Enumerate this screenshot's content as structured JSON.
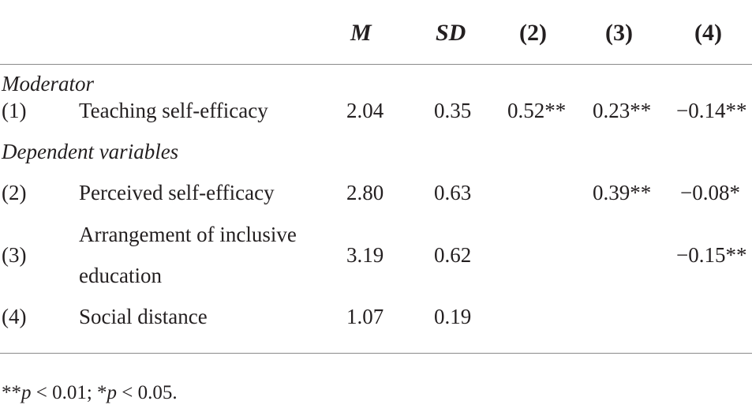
{
  "table": {
    "headers": {
      "m": "M",
      "sd": "SD",
      "c2": "(2)",
      "c3": "(3)",
      "c4": "(4)"
    },
    "sections": {
      "moderator": "Moderator",
      "dependent": "Dependent variables"
    },
    "rows": [
      {
        "num": "(1)",
        "label": "Teaching self-efficacy",
        "m": "2.04",
        "sd": "0.35",
        "c2": "0.52**",
        "c3": "0.23**",
        "c4": "−0.14**"
      },
      {
        "num": "(2)",
        "label": "Perceived self-efficacy",
        "m": "2.80",
        "sd": "0.63",
        "c2": "",
        "c3": "0.39**",
        "c4": "−0.08*"
      },
      {
        "num": "(3)",
        "label_line1": "Arrangement of inclusive",
        "label_line2": "education",
        "m": "3.19",
        "sd": "0.62",
        "c2": "",
        "c3": "",
        "c4": "−0.15**"
      },
      {
        "num": "(4)",
        "label": "Social distance",
        "m": "1.07",
        "sd": "0.19",
        "c2": "",
        "c3": "",
        "c4": ""
      }
    ]
  },
  "footnote": {
    "part1": "**",
    "p1": "p",
    "part2": " < 0.01; *",
    "p2": "p",
    "part3": " < 0.05."
  }
}
